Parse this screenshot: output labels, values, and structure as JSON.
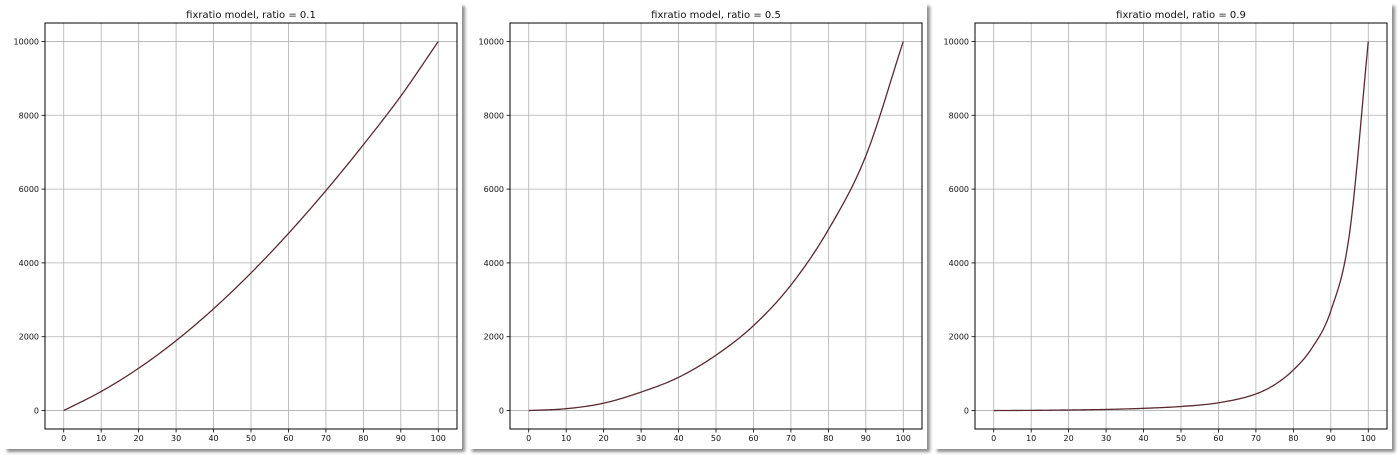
{
  "chart_data": [
    {
      "type": "line",
      "title": "fixratio model, ratio = 0.1",
      "ratio": 0.1,
      "xlim": [
        -5,
        105
      ],
      "ylim": [
        -500,
        10500
      ],
      "xticks": [
        0,
        10,
        20,
        30,
        40,
        50,
        60,
        70,
        80,
        90,
        100
      ],
      "yticks": [
        0,
        2000,
        4000,
        6000,
        8000,
        10000
      ],
      "grid": true,
      "line_color": "#5a2a30",
      "series": [
        {
          "x": [
            0,
            10,
            20,
            30,
            40,
            50,
            60,
            70,
            80,
            90,
            100
          ],
          "y": [
            0,
            516,
            1146,
            1894,
            2757,
            3728,
            4798,
            5959,
            7202,
            8520,
            10000
          ]
        }
      ]
    },
    {
      "type": "line",
      "title": "fixratio model, ratio = 0.5",
      "ratio": 0.5,
      "xlim": [
        -5,
        105
      ],
      "ylim": [
        -500,
        10500
      ],
      "xticks": [
        0,
        10,
        20,
        30,
        40,
        50,
        60,
        70,
        80,
        90,
        100
      ],
      "yticks": [
        0,
        2000,
        4000,
        6000,
        8000,
        10000
      ],
      "grid": true,
      "line_color": "#5a2a30",
      "series": [
        {
          "x": [
            0,
            10,
            20,
            30,
            40,
            50,
            60,
            70,
            80,
            90,
            100
          ],
          "y": [
            0,
            50,
            200,
            500,
            900,
            1500,
            2300,
            3400,
            4900,
            6900,
            10000
          ]
        }
      ]
    },
    {
      "type": "line",
      "title": "fixratio model, ratio = 0.9",
      "ratio": 0.9,
      "xlim": [
        -5,
        105
      ],
      "ylim": [
        -500,
        10500
      ],
      "xticks": [
        0,
        10,
        20,
        30,
        40,
        50,
        60,
        70,
        80,
        90,
        100
      ],
      "yticks": [
        0,
        2000,
        4000,
        6000,
        8000,
        10000
      ],
      "grid": true,
      "line_color": "#5a2a30",
      "series": [
        {
          "x": [
            0,
            10,
            20,
            30,
            40,
            50,
            60,
            70,
            75,
            80,
            85,
            90,
            95,
            100
          ],
          "y": [
            0,
            5,
            15,
            30,
            60,
            110,
            210,
            450,
            700,
            1100,
            1700,
            2700,
            4800,
            10000
          ]
        }
      ]
    }
  ]
}
